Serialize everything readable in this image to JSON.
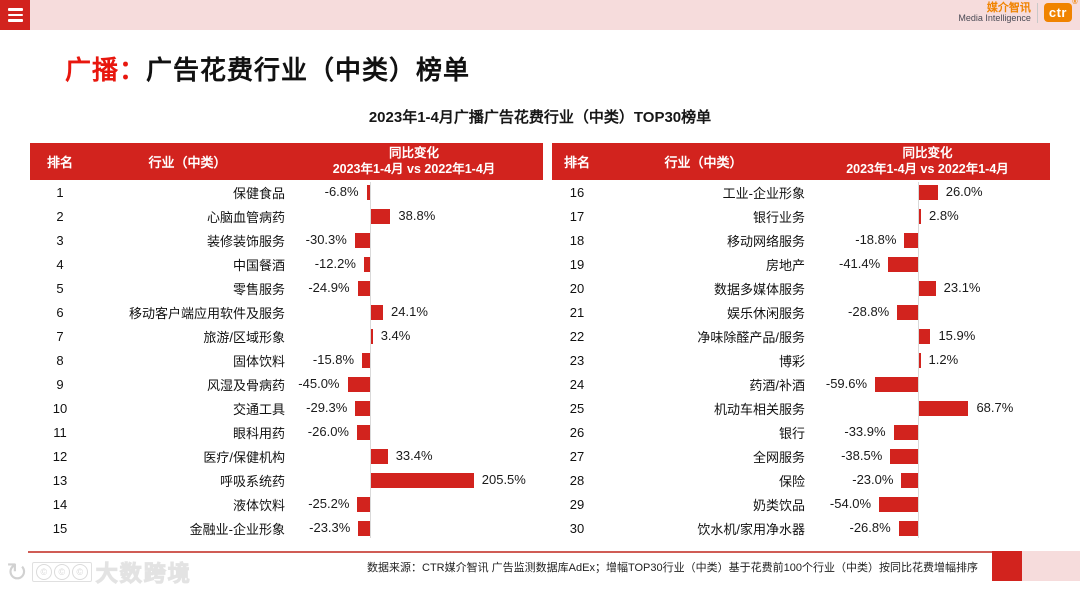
{
  "topbar": {
    "brand": {
      "cn": "媒介智讯",
      "en": "Media Intelligence",
      "logo": "ctr",
      "reg_mark": "®"
    }
  },
  "title": {
    "prefix": "广播：",
    "rest": "广告花费行业（中类）榜单"
  },
  "subtitle": "2023年1-4月广播广告花费行业（中类）TOP30榜单",
  "table": {
    "headers": {
      "rank": "排名",
      "industry": "行业（中类）",
      "change_line1": "同比变化",
      "change_line2": "2023年1-4月 vs 2022年1-4月"
    },
    "left_rows": [
      {
        "rank": "1",
        "industry": "保健食品",
        "value": -6.8,
        "label": "-6.8%"
      },
      {
        "rank": "2",
        "industry": "心脑血管病药",
        "value": 38.8,
        "label": "38.8%"
      },
      {
        "rank": "3",
        "industry": "装修装饰服务",
        "value": -30.3,
        "label": "-30.3%"
      },
      {
        "rank": "4",
        "industry": "中国餐酒",
        "value": -12.2,
        "label": "-12.2%"
      },
      {
        "rank": "5",
        "industry": "零售服务",
        "value": -24.9,
        "label": "-24.9%"
      },
      {
        "rank": "6",
        "industry": "移动客户端应用软件及服务",
        "value": 24.1,
        "label": "24.1%"
      },
      {
        "rank": "7",
        "industry": "旅游/区域形象",
        "value": 3.4,
        "label": "3.4%"
      },
      {
        "rank": "8",
        "industry": "固体饮料",
        "value": -15.8,
        "label": "-15.8%"
      },
      {
        "rank": "9",
        "industry": "风湿及骨病药",
        "value": -45.0,
        "label": "-45.0%"
      },
      {
        "rank": "10",
        "industry": "交通工具",
        "value": -29.3,
        "label": "-29.3%"
      },
      {
        "rank": "11",
        "industry": "眼科用药",
        "value": -26.0,
        "label": "-26.0%"
      },
      {
        "rank": "12",
        "industry": "医疗/保健机构",
        "value": 33.4,
        "label": "33.4%"
      },
      {
        "rank": "13",
        "industry": "呼吸系统药",
        "value": 205.5,
        "label": "205.5%"
      },
      {
        "rank": "14",
        "industry": "液体饮料",
        "value": -25.2,
        "label": "-25.2%"
      },
      {
        "rank": "15",
        "industry": "金融业-企业形象",
        "value": -23.3,
        "label": "-23.3%"
      }
    ],
    "right_rows": [
      {
        "rank": "16",
        "industry": "工业-企业形象",
        "value": 26.0,
        "label": "26.0%"
      },
      {
        "rank": "17",
        "industry": "银行业务",
        "value": 2.8,
        "label": "2.8%"
      },
      {
        "rank": "18",
        "industry": "移动网络服务",
        "value": -18.8,
        "label": "-18.8%"
      },
      {
        "rank": "19",
        "industry": "房地产",
        "value": -41.4,
        "label": "-41.4%"
      },
      {
        "rank": "20",
        "industry": "数据多媒体服务",
        "value": 23.1,
        "label": "23.1%"
      },
      {
        "rank": "21",
        "industry": "娱乐休闲服务",
        "value": -28.8,
        "label": "-28.8%"
      },
      {
        "rank": "22",
        "industry": "净味除醛产品/服务",
        "value": 15.9,
        "label": "15.9%"
      },
      {
        "rank": "23",
        "industry": "博彩",
        "value": 1.2,
        "label": "1.2%"
      },
      {
        "rank": "24",
        "industry": "药酒/补酒",
        "value": -59.6,
        "label": "-59.6%"
      },
      {
        "rank": "25",
        "industry": "机动车相关服务",
        "value": 68.7,
        "label": "68.7%"
      },
      {
        "rank": "26",
        "industry": "银行",
        "value": -33.9,
        "label": "-33.9%"
      },
      {
        "rank": "27",
        "industry": "全网服务",
        "value": -38.5,
        "label": "-38.5%"
      },
      {
        "rank": "28",
        "industry": "保险",
        "value": -23.0,
        "label": "-23.0%"
      },
      {
        "rank": "29",
        "industry": "奶类饮品",
        "value": -54.0,
        "label": "-54.0%"
      },
      {
        "rank": "30",
        "industry": "饮水机/家用净水器",
        "value": -26.8,
        "label": "-26.8%"
      }
    ]
  },
  "footer": {
    "source": "数据来源：CTR媒介智讯 广告监测数据库AdEx；增幅TOP30行业（中类）基于花费前100个行业（中类）按同比花费增幅排序"
  },
  "watermark": {
    "text": "大数跨境"
  },
  "colors": {
    "primary_red": "#d2231e",
    "title_red": "#e8170e",
    "pink_strip": "#f6dcdc",
    "axis_gray": "#d9d9d9",
    "brand_orange": "#f08300"
  },
  "chart_data": {
    "type": "bar",
    "orientation": "horizontal",
    "title": "2023年1-4月广播广告花费行业（中类）TOP30榜单",
    "xlabel": "同比变化 2023年1-4月 vs 2022年1-4月",
    "ylabel": "行业（中类）",
    "unit": "%",
    "categories": [
      "保健食品",
      "心脑血管病药",
      "装修装饰服务",
      "中国餐酒",
      "零售服务",
      "移动客户端应用软件及服务",
      "旅游/区域形象",
      "固体饮料",
      "风湿及骨病药",
      "交通工具",
      "眼科用药",
      "医疗/保健机构",
      "呼吸系统药",
      "液体饮料",
      "金融业-企业形象",
      "工业-企业形象",
      "银行业务",
      "移动网络服务",
      "房地产",
      "数据多媒体服务",
      "娱乐休闲服务",
      "净味除醛产品/服务",
      "博彩",
      "药酒/补酒",
      "机动车相关服务",
      "银行",
      "全网服务",
      "保险",
      "奶类饮品",
      "饮水机/家用净水器"
    ],
    "values": [
      -6.8,
      38.8,
      -30.3,
      -12.2,
      -24.9,
      24.1,
      3.4,
      -15.8,
      -45.0,
      -29.3,
      -26.0,
      33.4,
      205.5,
      -25.2,
      -23.3,
      26.0,
      2.8,
      -18.8,
      -41.4,
      23.1,
      -28.8,
      15.9,
      1.2,
      -59.6,
      68.7,
      -33.9,
      -38.5,
      -23.0,
      -54.0,
      -26.8
    ],
    "ranks": [
      1,
      2,
      3,
      4,
      5,
      6,
      7,
      8,
      9,
      10,
      11,
      12,
      13,
      14,
      15,
      16,
      17,
      18,
      19,
      20,
      21,
      22,
      23,
      24,
      25,
      26,
      27,
      28,
      29,
      30
    ],
    "bar_color": "#d2231e",
    "grid": false,
    "legend_position": "none"
  }
}
